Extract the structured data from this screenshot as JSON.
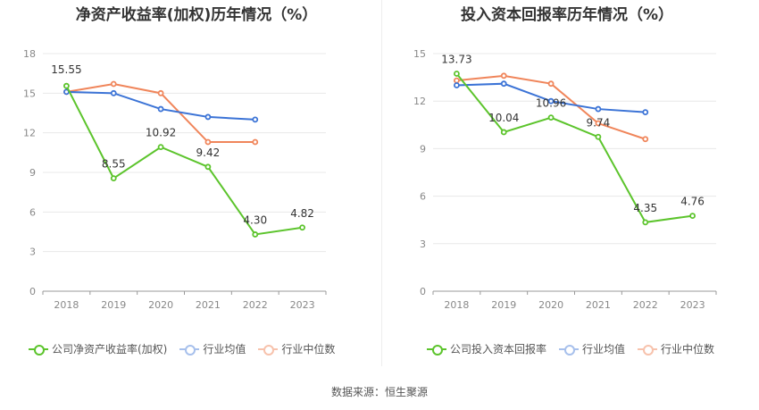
{
  "source": "数据来源：恒生聚源",
  "colors": {
    "company": "#5cc42c",
    "avg": "#3b73d6",
    "median": "#f0855a"
  },
  "legend_labels": {
    "avg": "行业均值",
    "median": "行业中位数"
  },
  "chart_data": [
    {
      "type": "line",
      "title": "净资产收益率(加权)历年情况（%）",
      "categories": [
        "2018",
        "2019",
        "2020",
        "2021",
        "2022",
        "2023"
      ],
      "ylim": [
        0,
        18
      ],
      "yticks": [
        0,
        3,
        6,
        9,
        12,
        15,
        18
      ],
      "grid": true,
      "legend": "bottom",
      "series": [
        {
          "name": "公司净资产收益率(加权)",
          "key": "company",
          "values": [
            15.55,
            8.55,
            10.92,
            9.42,
            4.3,
            4.82
          ],
          "labels": [
            "15.55",
            "8.55",
            "10.92",
            "9.42",
            "4.30",
            "4.82"
          ]
        },
        {
          "name": "行业均值",
          "key": "avg",
          "values": [
            15.1,
            15.0,
            13.8,
            13.2,
            13.0,
            null
          ]
        },
        {
          "name": "行业中位数",
          "key": "median",
          "values": [
            15.1,
            15.7,
            15.0,
            11.3,
            11.3,
            null
          ]
        }
      ]
    },
    {
      "type": "line",
      "title": "投入资本回报率历年情况（%）",
      "categories": [
        "2018",
        "2019",
        "2020",
        "2021",
        "2022",
        "2023"
      ],
      "ylim": [
        0,
        15
      ],
      "yticks": [
        0,
        3,
        6,
        9,
        12,
        15
      ],
      "grid": true,
      "legend": "bottom",
      "series": [
        {
          "name": "公司投入资本回报率",
          "key": "company",
          "values": [
            13.73,
            10.04,
            10.96,
            9.74,
            4.35,
            4.76
          ],
          "labels": [
            "13.73",
            "10.04",
            "10.96",
            "9.74",
            "4.35",
            "4.76"
          ]
        },
        {
          "name": "行业均值",
          "key": "avg",
          "values": [
            13.0,
            13.1,
            12.0,
            11.5,
            11.3,
            null
          ]
        },
        {
          "name": "行业中位数",
          "key": "median",
          "values": [
            13.3,
            13.6,
            13.1,
            10.6,
            9.6,
            null
          ]
        }
      ]
    }
  ]
}
